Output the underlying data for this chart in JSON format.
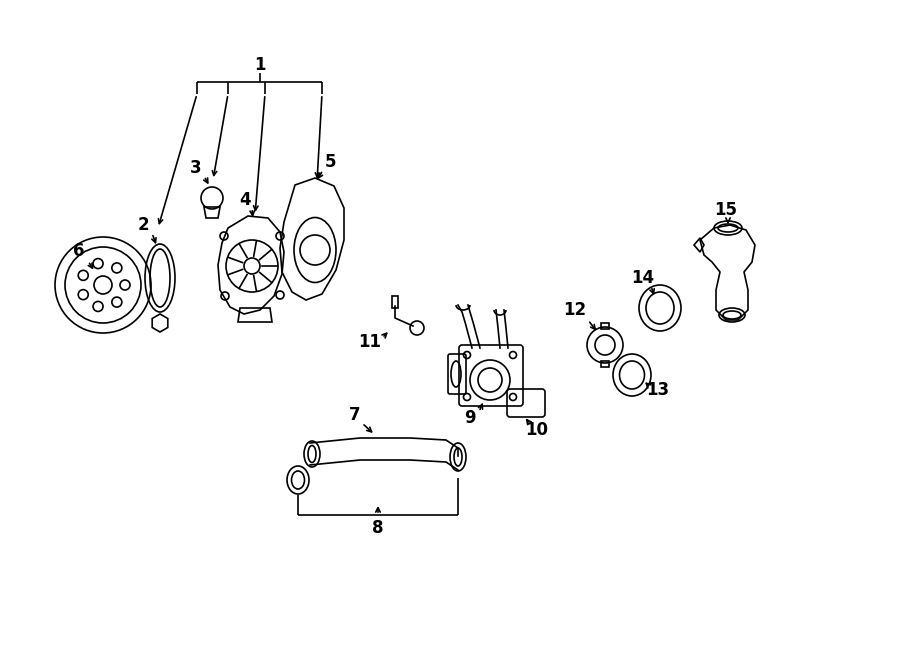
{
  "bg_color": "#ffffff",
  "line_color": "#000000",
  "text_color": "#000000",
  "fig_width": 9.0,
  "fig_height": 6.61,
  "dpi": 100
}
